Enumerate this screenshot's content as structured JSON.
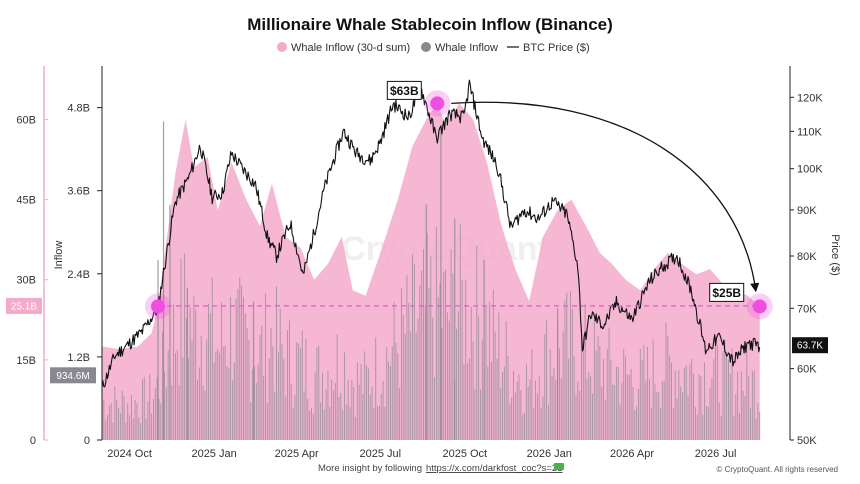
{
  "chart_data": {
    "type": "bar",
    "title": "Millionaire Whale Stablecoin Inflow (Binance)",
    "legend": {
      "placement": "top-center",
      "entries": [
        {
          "name": "Whale Inflow (30-d sum)",
          "marker": "circle",
          "color": "#f4aacb"
        },
        {
          "name": "Whale Inflow",
          "marker": "circle",
          "color": "#8a8790"
        },
        {
          "name": "BTC Price ($)",
          "marker": "line",
          "color": "#111111"
        }
      ]
    },
    "x_axis": {
      "type": "date",
      "range": [
        "2024-09-01",
        "2026-09-20"
      ],
      "ticks": [
        {
          "date": "2024-10-01",
          "label": "2024 Oct"
        },
        {
          "date": "2025-01-01",
          "label": "2025 Jan"
        },
        {
          "date": "2025-04-01",
          "label": "2025 Apr"
        },
        {
          "date": "2025-07-01",
          "label": "2025 Jul"
        },
        {
          "date": "2025-10-01",
          "label": "2025 Oct"
        },
        {
          "date": "2026-01-01",
          "label": "2026 Jan"
        },
        {
          "date": "2026-04-01",
          "label": "2026 Apr"
        },
        {
          "date": "2026-07-01",
          "label": "2026 Jul"
        }
      ]
    },
    "y_axes": {
      "sum_30d": {
        "ylim": [
          0,
          70
        ],
        "ticks": [
          {
            "value": 0,
            "label": "0"
          },
          {
            "value": 15,
            "label": "15B"
          },
          {
            "value": 30,
            "label": "30B"
          },
          {
            "value": 45,
            "label": "45B"
          },
          {
            "value": 60,
            "label": "60B"
          }
        ]
      },
      "inflow": {
        "label": "Inflow",
        "ylim": [
          0,
          5.4
        ],
        "ticks": [
          {
            "value": 0,
            "label": "0"
          },
          {
            "value": 1.2,
            "label": "1.2B"
          },
          {
            "value": 2.4,
            "label": "2.4B"
          },
          {
            "value": 3.6,
            "label": "3.6B"
          },
          {
            "value": 4.8,
            "label": "4.8B"
          }
        ]
      },
      "price": {
        "label": "Price ($)",
        "scale": "log",
        "ylim": [
          50000,
          130000
        ],
        "ticks": [
          {
            "value": 50000,
            "label": "50K"
          },
          {
            "value": 60000,
            "label": "60K"
          },
          {
            "value": 70000,
            "label": "70K"
          },
          {
            "value": 80000,
            "label": "80K"
          },
          {
            "value": 90000,
            "label": "90K"
          },
          {
            "value": 100000,
            "label": "100K"
          },
          {
            "value": 110000,
            "label": "110K"
          },
          {
            "value": 120000,
            "label": "120K"
          }
        ]
      }
    },
    "badges": {
      "sum_30d_current": {
        "value": 25.1,
        "label": "25.1B",
        "color": "#f4aacb"
      },
      "inflow_current": {
        "value": 0.9346,
        "label": "934.6M",
        "color": "#8a8790"
      },
      "price_current": {
        "value": 63700,
        "label": "63.7K",
        "color": "#111111"
      }
    },
    "annotations": {
      "peak": {
        "date": "2025-09-01",
        "value": 63,
        "label": "$63B"
      },
      "current": {
        "date": "2026-08-18",
        "value": 25,
        "label": "$25B"
      },
      "start": {
        "date": "2024-11-01",
        "value": 25
      },
      "reference_line": {
        "value": 25.1,
        "style": "dashed",
        "color": "#f04ee0"
      }
    },
    "series": [
      {
        "name": "Whale Inflow (30-d sum)",
        "unit": "B",
        "axis": "sum_30d",
        "color": "#f4aacb",
        "points": [
          [
            "2024-09-01",
            17.5
          ],
          [
            "2024-09-20",
            17.0
          ],
          [
            "2024-10-10",
            17.5
          ],
          [
            "2024-10-25",
            20.0
          ],
          [
            "2024-11-01",
            25.0
          ],
          [
            "2024-11-10",
            37.0
          ],
          [
            "2024-11-20",
            50.0
          ],
          [
            "2024-12-01",
            60.0
          ],
          [
            "2024-12-10",
            51.0
          ],
          [
            "2024-12-25",
            53.0
          ],
          [
            "2025-01-05",
            43.0
          ],
          [
            "2025-01-20",
            52.0
          ],
          [
            "2025-02-05",
            45.0
          ],
          [
            "2025-02-20",
            40.0
          ],
          [
            "2025-03-05",
            48.0
          ],
          [
            "2025-03-20",
            38.0
          ],
          [
            "2025-04-05",
            36.0
          ],
          [
            "2025-04-20",
            30.0
          ],
          [
            "2025-05-05",
            33.0
          ],
          [
            "2025-05-20",
            38.0
          ],
          [
            "2025-06-01",
            28.0
          ],
          [
            "2025-06-15",
            27.0
          ],
          [
            "2025-07-01",
            35.0
          ],
          [
            "2025-07-20",
            45.0
          ],
          [
            "2025-08-05",
            55.0
          ],
          [
            "2025-08-20",
            60.0
          ],
          [
            "2025-09-01",
            63.0
          ],
          [
            "2025-09-10",
            59.0
          ],
          [
            "2025-09-25",
            63.0
          ],
          [
            "2025-10-10",
            60.0
          ],
          [
            "2025-10-25",
            52.0
          ],
          [
            "2025-11-10",
            40.0
          ],
          [
            "2025-11-25",
            32.0
          ],
          [
            "2025-12-10",
            26.0
          ],
          [
            "2025-12-25",
            38.0
          ],
          [
            "2026-01-10",
            43.0
          ],
          [
            "2026-01-25",
            45.0
          ],
          [
            "2026-02-10",
            40.0
          ],
          [
            "2026-02-25",
            35.0
          ],
          [
            "2026-03-10",
            33.0
          ],
          [
            "2026-03-25",
            30.0
          ],
          [
            "2026-04-10",
            28.0
          ],
          [
            "2026-04-25",
            32.0
          ],
          [
            "2026-05-10",
            35.0
          ],
          [
            "2026-05-25",
            33.0
          ],
          [
            "2026-06-10",
            31.0
          ],
          [
            "2026-06-25",
            32.0
          ],
          [
            "2026-07-10",
            29.0
          ],
          [
            "2026-07-25",
            28.0
          ],
          [
            "2026-08-05",
            27.0
          ],
          [
            "2026-08-18",
            25.0
          ]
        ]
      },
      {
        "name": "Whale Inflow",
        "unit": "B",
        "axis": "inflow",
        "color": "#8a8790",
        "spikes": [
          [
            "2024-11-01",
            2.6
          ],
          [
            "2024-11-07",
            4.6
          ],
          [
            "2024-11-14",
            3.4
          ],
          [
            "2024-12-03",
            2.2
          ],
          [
            "2025-02-13",
            2.0
          ],
          [
            "2025-08-20",
            3.4
          ],
          [
            "2025-09-05",
            4.5
          ],
          [
            "2025-09-20",
            3.2
          ],
          [
            "2025-10-22",
            2.6
          ],
          [
            "2026-01-10",
            1.9
          ]
        ]
      },
      {
        "name": "BTC Price ($)",
        "unit": "$",
        "axis": "price",
        "color": "#111111",
        "points": [
          [
            "2024-09-01",
            57000
          ],
          [
            "2024-09-15",
            62000
          ],
          [
            "2024-10-01",
            64000
          ],
          [
            "2024-10-15",
            66000
          ],
          [
            "2024-11-01",
            70000
          ],
          [
            "2024-11-10",
            80000
          ],
          [
            "2024-11-20",
            92000
          ],
          [
            "2024-12-05",
            98000
          ],
          [
            "2024-12-17",
            106000
          ],
          [
            "2024-12-30",
            93000
          ],
          [
            "2025-01-10",
            94000
          ],
          [
            "2025-01-20",
            104000
          ],
          [
            "2025-02-01",
            100000
          ],
          [
            "2025-02-15",
            96000
          ],
          [
            "2025-02-28",
            84000
          ],
          [
            "2025-03-10",
            80000
          ],
          [
            "2025-03-25",
            87000
          ],
          [
            "2025-04-08",
            76000
          ],
          [
            "2025-04-20",
            85000
          ],
          [
            "2025-05-01",
            95000
          ],
          [
            "2025-05-22",
            110000
          ],
          [
            "2025-06-05",
            104000
          ],
          [
            "2025-06-20",
            102000
          ],
          [
            "2025-07-01",
            107000
          ],
          [
            "2025-07-15",
            118000
          ],
          [
            "2025-08-01",
            114000
          ],
          [
            "2025-08-14",
            123000
          ],
          [
            "2025-08-31",
            108000
          ],
          [
            "2025-09-15",
            115000
          ],
          [
            "2025-09-30",
            114000
          ],
          [
            "2025-10-06",
            124000
          ],
          [
            "2025-10-20",
            108000
          ],
          [
            "2025-11-05",
            101000
          ],
          [
            "2025-11-20",
            86000
          ],
          [
            "2025-12-05",
            90000
          ],
          [
            "2025-12-20",
            88000
          ],
          [
            "2026-01-05",
            92000
          ],
          [
            "2026-01-20",
            89000
          ],
          [
            "2026-02-01",
            78000
          ],
          [
            "2026-02-06",
            63000
          ],
          [
            "2026-02-15",
            69000
          ],
          [
            "2026-03-01",
            67000
          ],
          [
            "2026-03-15",
            71000
          ],
          [
            "2026-04-01",
            68000
          ],
          [
            "2026-04-20",
            75000
          ],
          [
            "2026-05-05",
            78000
          ],
          [
            "2026-05-20",
            80000
          ],
          [
            "2026-06-05",
            73000
          ],
          [
            "2026-06-20",
            63000
          ],
          [
            "2026-07-05",
            65000
          ],
          [
            "2026-07-20",
            61000
          ],
          [
            "2026-08-05",
            64000
          ],
          [
            "2026-08-18",
            63700
          ]
        ]
      }
    ]
  },
  "watermark": "CryptoQuant",
  "footer": {
    "text": "More insight by following",
    "link": "https://x.com/darkfost_coc?s=21",
    "copyright": "© CryptoQuant. All rights reserved"
  }
}
